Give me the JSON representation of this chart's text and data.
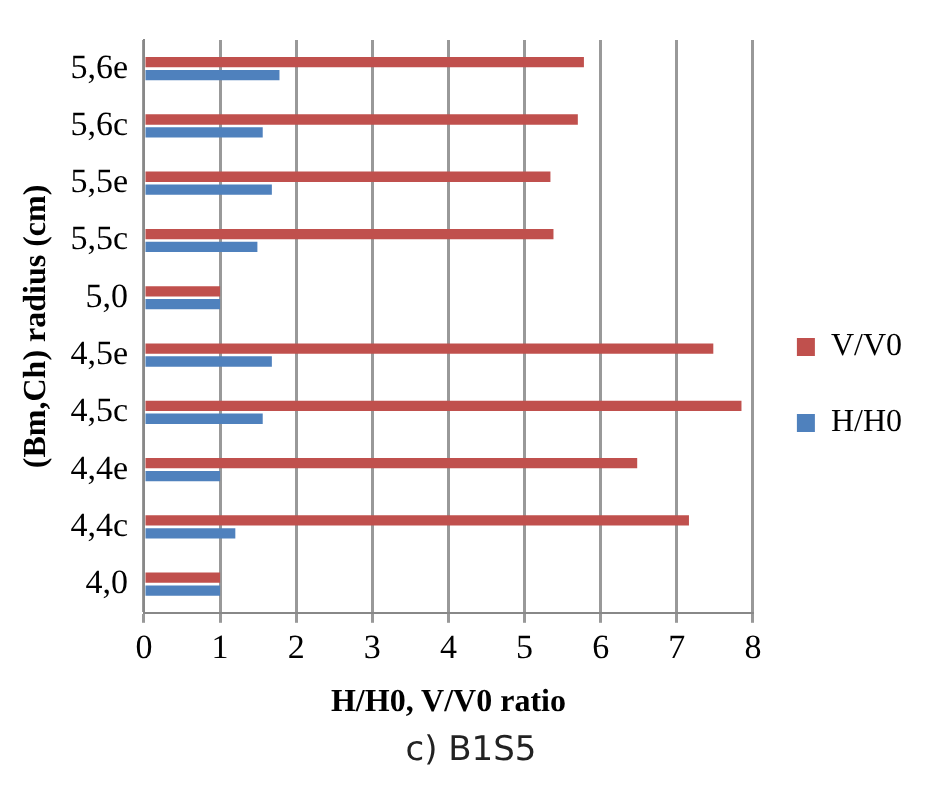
{
  "chart_data": {
    "type": "bar",
    "orientation": "horizontal",
    "xlabel": "H/H0, V/V0 ratio",
    "ylabel": "(Bm,Ch) radius (cm)",
    "categories": [
      "5,6e",
      "5,6c",
      "5,5e",
      "5,5c",
      "5,0",
      "4,5e",
      "4,5c",
      "4,4e",
      "4,4c",
      "4,0"
    ],
    "series": [
      {
        "name": "V/V0",
        "color": "#c0504d",
        "values": [
          5.78,
          5.7,
          5.34,
          5.38,
          1,
          7.48,
          7.85,
          6.48,
          7.16,
          1
        ]
      },
      {
        "name": "H/H0",
        "color": "#4f81bd",
        "values": [
          1.78,
          1.56,
          1.68,
          1.49,
          1,
          1.68,
          1.56,
          1,
          1.2,
          1
        ]
      }
    ],
    "xlim": [
      0,
      8
    ],
    "xticks": [
      0,
      1,
      2,
      3,
      4,
      5,
      6,
      7,
      8
    ],
    "grid": "x",
    "legend": "right",
    "annotations": [
      "c) B1S5"
    ]
  }
}
